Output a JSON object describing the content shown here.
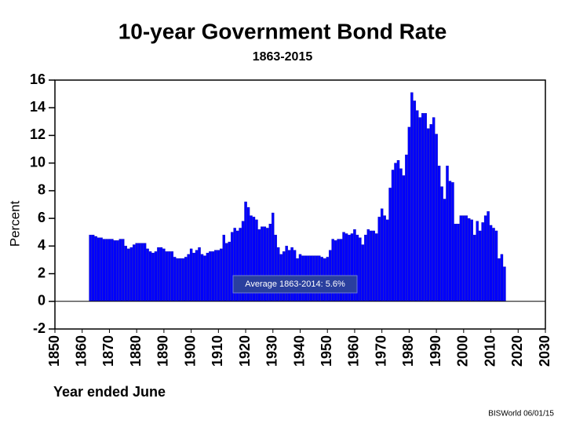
{
  "chart_data": {
    "type": "bar",
    "title": "10-year Government Bond Rate",
    "subtitle": "1863-2015",
    "y_label": "Percent",
    "x_label": "Year ended June",
    "annotation": "Average 1863-2014:  5.6%",
    "source": "BISWorld  06/01/15",
    "color": "#0000ff",
    "x": [
      1863,
      1864,
      1865,
      1866,
      1867,
      1868,
      1869,
      1870,
      1871,
      1872,
      1873,
      1874,
      1875,
      1876,
      1877,
      1878,
      1879,
      1880,
      1881,
      1882,
      1883,
      1884,
      1885,
      1886,
      1887,
      1888,
      1889,
      1890,
      1891,
      1892,
      1893,
      1894,
      1895,
      1896,
      1897,
      1898,
      1899,
      1900,
      1901,
      1902,
      1903,
      1904,
      1905,
      1906,
      1907,
      1908,
      1909,
      1910,
      1911,
      1912,
      1913,
      1914,
      1915,
      1916,
      1917,
      1918,
      1919,
      1920,
      1921,
      1922,
      1923,
      1924,
      1925,
      1926,
      1927,
      1928,
      1929,
      1930,
      1931,
      1932,
      1933,
      1934,
      1935,
      1936,
      1937,
      1938,
      1939,
      1940,
      1941,
      1942,
      1943,
      1944,
      1945,
      1946,
      1947,
      1948,
      1949,
      1950,
      1951,
      1952,
      1953,
      1954,
      1955,
      1956,
      1957,
      1958,
      1959,
      1960,
      1961,
      1962,
      1963,
      1964,
      1965,
      1966,
      1967,
      1968,
      1969,
      1970,
      1971,
      1972,
      1973,
      1974,
      1975,
      1976,
      1977,
      1978,
      1979,
      1980,
      1981,
      1982,
      1983,
      1984,
      1985,
      1986,
      1987,
      1988,
      1989,
      1990,
      1991,
      1992,
      1993,
      1994,
      1995,
      1996,
      1997,
      1998,
      1999,
      2000,
      2001,
      2002,
      2003,
      2004,
      2005,
      2006,
      2007,
      2008,
      2009,
      2010,
      2011,
      2012,
      2013,
      2014,
      2015
    ],
    "values": [
      4.8,
      4.8,
      4.7,
      4.6,
      4.6,
      4.5,
      4.5,
      4.5,
      4.5,
      4.4,
      4.4,
      4.5,
      4.5,
      4.0,
      3.8,
      3.9,
      4.1,
      4.2,
      4.2,
      4.2,
      4.2,
      3.8,
      3.6,
      3.5,
      3.6,
      3.9,
      3.9,
      3.8,
      3.6,
      3.6,
      3.6,
      3.2,
      3.1,
      3.1,
      3.1,
      3.2,
      3.4,
      3.8,
      3.5,
      3.7,
      3.9,
      3.4,
      3.3,
      3.5,
      3.6,
      3.6,
      3.7,
      3.7,
      3.8,
      4.8,
      4.2,
      4.3,
      5.0,
      5.3,
      5.1,
      5.3,
      5.8,
      7.2,
      6.8,
      6.2,
      6.1,
      5.9,
      5.2,
      5.4,
      5.4,
      5.3,
      5.6,
      6.4,
      4.8,
      3.9,
      3.4,
      3.6,
      4.0,
      3.7,
      3.9,
      3.7,
      3.1,
      3.4,
      3.3,
      3.3,
      3.3,
      3.3,
      3.3,
      3.3,
      3.3,
      3.2,
      3.1,
      3.2,
      3.7,
      4.5,
      4.4,
      4.5,
      4.5,
      5.0,
      4.9,
      4.8,
      4.9,
      5.2,
      4.8,
      4.6,
      4.1,
      4.8,
      5.2,
      5.1,
      5.1,
      4.9,
      6.1,
      6.7,
      6.2,
      5.9,
      8.2,
      9.5,
      10.0,
      10.2,
      9.6,
      9.1,
      10.6,
      12.6,
      15.1,
      14.5,
      13.8,
      13.3,
      13.6,
      13.6,
      12.5,
      12.8,
      13.3,
      12.1,
      9.8,
      8.3,
      7.4,
      9.8,
      8.7,
      8.6,
      5.6,
      5.6,
      6.2,
      6.2,
      6.2,
      6.0,
      5.9,
      4.8,
      5.8,
      5.1,
      5.7,
      6.2,
      6.5,
      5.5,
      5.3,
      5.1,
      3.1,
      3.4,
      2.5
    ],
    "xlim": [
      1850,
      2030
    ],
    "xticks": [
      1850,
      1860,
      1870,
      1880,
      1890,
      1900,
      1910,
      1920,
      1930,
      1940,
      1950,
      1960,
      1970,
      1980,
      1990,
      2000,
      2010,
      2020,
      2030
    ],
    "ylim": [
      -2,
      16
    ],
    "yticks": [
      -2,
      0,
      2,
      4,
      6,
      8,
      10,
      12,
      14,
      16
    ]
  }
}
